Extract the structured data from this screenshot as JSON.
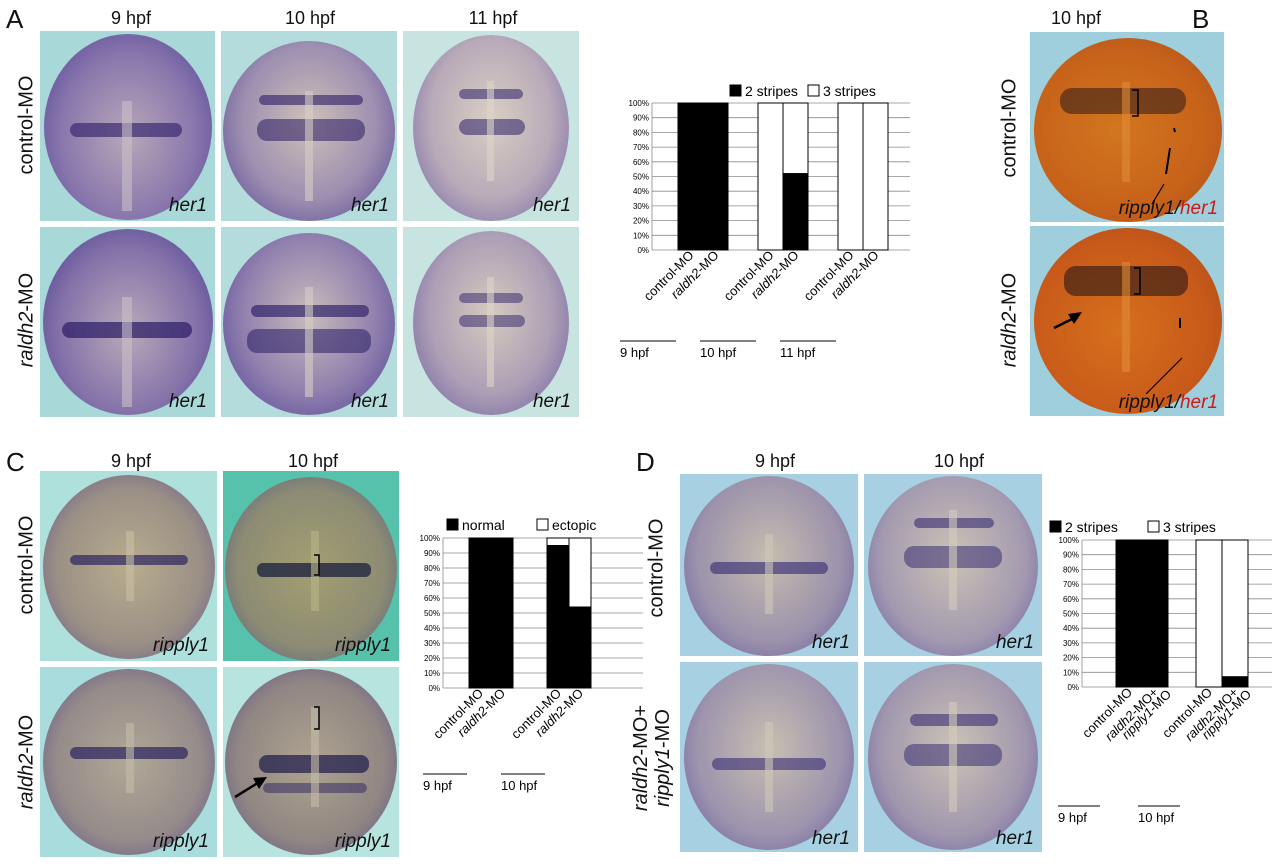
{
  "figure": {
    "panels": {
      "A": {
        "label": "A",
        "columns": [
          "9 hpf",
          "10 hpf",
          "11 hpf"
        ],
        "rows": [
          {
            "prefix": "",
            "italic": "",
            "suffix": "control-MO"
          },
          {
            "prefix": "",
            "italic": "raldh2",
            "suffix": "-MO"
          }
        ],
        "gene": "her1"
      },
      "B": {
        "label": "B",
        "column": "10 hpf",
        "rows": [
          {
            "prefix": "",
            "italic": "",
            "suffix": "control-MO"
          },
          {
            "prefix": "",
            "italic": "raldh2",
            "suffix": "-MO"
          }
        ],
        "gene_a": "ripply1",
        "gene_sep": "/",
        "gene_b": "her1"
      },
      "C": {
        "label": "C",
        "columns": [
          "9 hpf",
          "10 hpf"
        ],
        "rows": [
          {
            "prefix": "",
            "italic": "",
            "suffix": "control-MO"
          },
          {
            "prefix": "",
            "italic": "raldh2",
            "suffix": "-MO"
          }
        ],
        "gene": "ripply1"
      },
      "D": {
        "label": "D",
        "columns": [
          "9 hpf",
          "10 hpf"
        ],
        "rows": [
          {
            "line1_italic": "",
            "line1_suffix": "control-MO",
            "line2_italic": "",
            "line2_suffix": ""
          },
          {
            "line1_italic": "raldh2",
            "line1_suffix": "-MO+",
            "line2_italic": "ripply1",
            "line2_suffix": "-MO"
          }
        ],
        "gene": "her1"
      }
    }
  },
  "chart_data": [
    {
      "type": "bar",
      "panel": "A",
      "stacked": true,
      "legend": [
        "2 stripes",
        "3 stripes"
      ],
      "legend_colors": [
        "#000000",
        "#ffffff"
      ],
      "y_ticks": [
        "0%",
        "10%",
        "20%",
        "30%",
        "40%",
        "50%",
        "60%",
        "70%",
        "80%",
        "90%",
        "100%"
      ],
      "ylim": [
        0,
        100
      ],
      "categories": [
        {
          "italic": "",
          "text": "control-MO"
        },
        {
          "italic": "raldh2",
          "text": "-MO"
        },
        {
          "italic": "",
          "text": "control-MO"
        },
        {
          "italic": "raldh2",
          "text": "-MO"
        },
        {
          "italic": "",
          "text": "control-MO"
        },
        {
          "italic": "raldh2",
          "text": "-MO"
        }
      ],
      "series": [
        {
          "name": "2 stripes",
          "values": [
            100,
            100,
            0,
            52,
            0,
            0
          ]
        },
        {
          "name": "3 stripes",
          "values": [
            0,
            0,
            100,
            48,
            100,
            100
          ]
        }
      ],
      "groups": [
        "9 hpf",
        "10 hpf",
        "11 hpf"
      ],
      "grid": true
    },
    {
      "type": "bar",
      "panel": "C",
      "stacked": true,
      "legend": [
        "normal",
        "ectopic"
      ],
      "legend_colors": [
        "#000000",
        "#ffffff"
      ],
      "y_ticks": [
        "0%",
        "10%",
        "20%",
        "30%",
        "40%",
        "50%",
        "60%",
        "70%",
        "80%",
        "90%",
        "100%"
      ],
      "ylim": [
        0,
        100
      ],
      "categories": [
        {
          "italic": "",
          "text": "control-MO"
        },
        {
          "italic": "raldh2",
          "text": "-MO"
        },
        {
          "italic": "",
          "text": "control-MO"
        },
        {
          "italic": "raldh2",
          "text": "-MO"
        }
      ],
      "series": [
        {
          "name": "normal",
          "values": [
            100,
            100,
            95,
            54
          ]
        },
        {
          "name": "ectopic",
          "values": [
            0,
            0,
            5,
            46
          ]
        }
      ],
      "groups": [
        "9 hpf",
        "10 hpf"
      ],
      "grid": true
    },
    {
      "type": "bar",
      "panel": "D",
      "stacked": true,
      "legend": [
        "2 stripes",
        "3 stripes"
      ],
      "legend_colors": [
        "#000000",
        "#ffffff"
      ],
      "y_ticks": [
        "0%",
        "10%",
        "20%",
        "30%",
        "40%",
        "50%",
        "60%",
        "70%",
        "80%",
        "90%",
        "100%"
      ],
      "ylim": [
        0,
        100
      ],
      "categories": [
        {
          "italic": "",
          "text": "control-MO",
          "italic2": "",
          "text2": ""
        },
        {
          "italic": "raldh2",
          "text": "-MO+",
          "italic2": "ripply1",
          "text2": "-MO"
        },
        {
          "italic": "",
          "text": "control-MO",
          "italic2": "",
          "text2": ""
        },
        {
          "italic": "raldh2",
          "text": "-MO+",
          "italic2": "ripply1",
          "text2": "-MO"
        }
      ],
      "series": [
        {
          "name": "2 stripes",
          "values": [
            100,
            100,
            0,
            7
          ]
        },
        {
          "name": "3 stripes",
          "values": [
            0,
            0,
            100,
            93
          ]
        }
      ],
      "groups": [
        "9 hpf",
        "10 hpf"
      ],
      "grid": true
    }
  ]
}
